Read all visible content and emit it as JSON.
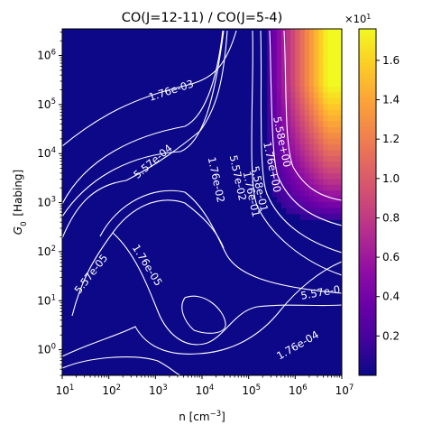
{
  "chart_data": {
    "type": "heatmap",
    "title": "CO(J=12-11) / CO(J=5-4)",
    "xlabel": "n [cm$^{-3}$]",
    "ylabel": "$G_0$ [Habing]",
    "xscale": "log",
    "yscale": "log",
    "xlim": [
      10,
      10000000
    ],
    "ylim": [
      0.3,
      3500000
    ],
    "x_ticks": [
      {
        "value": 10,
        "mant": "10",
        "exp": "1"
      },
      {
        "value": 100,
        "mant": "10",
        "exp": "2"
      },
      {
        "value": 1000,
        "mant": "10",
        "exp": "3"
      },
      {
        "value": 10000,
        "mant": "10",
        "exp": "4"
      },
      {
        "value": 100000,
        "mant": "10",
        "exp": "5"
      },
      {
        "value": 1000000,
        "mant": "10",
        "exp": "6"
      },
      {
        "value": 10000000,
        "mant": "10",
        "exp": "7"
      }
    ],
    "y_ticks": [
      {
        "value": 1,
        "mant": "10",
        "exp": "0"
      },
      {
        "value": 10,
        "mant": "10",
        "exp": "1"
      },
      {
        "value": 100,
        "mant": "10",
        "exp": "2"
      },
      {
        "value": 1000,
        "mant": "10",
        "exp": "3"
      },
      {
        "value": 10000,
        "mant": "10",
        "exp": "4"
      },
      {
        "value": 100000,
        "mant": "10",
        "exp": "5"
      },
      {
        "value": 1000000,
        "mant": "10",
        "exp": "6"
      }
    ],
    "colormap": "plasma",
    "colorbar": {
      "multiplier_mant": "×10",
      "multiplier_exp": "1",
      "range": [
        0.0,
        1.76
      ],
      "ticks": [
        "0.2",
        "0.4",
        "0.6",
        "0.8",
        "1.0",
        "1.2",
        "1.4",
        "1.6"
      ]
    },
    "contour_labels": [
      "1.76e-03",
      "5.57e-04",
      "5.58e+00",
      "1.76e+00",
      "5.58e-01",
      "1.76e-01",
      "5.57e-02",
      "1.76e-02",
      "5.57e-05",
      "1.76e-05",
      "5.57e-0",
      "1.76e-04"
    ]
  }
}
